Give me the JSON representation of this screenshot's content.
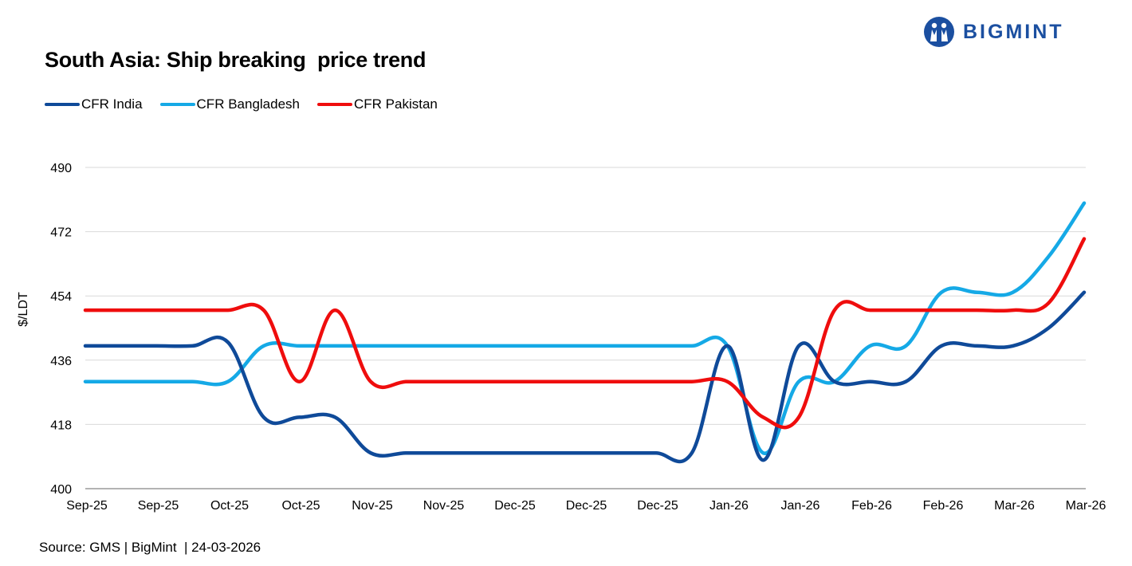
{
  "brand": {
    "name": "BIGMINT"
  },
  "chart_data": {
    "type": "line",
    "title": "South Asia: Ship breaking  price trend",
    "ylabel": "$/LDT",
    "xlabel": "",
    "ylim": [
      400,
      490
    ],
    "yticks": [
      400,
      418,
      436,
      454,
      472,
      490
    ],
    "grid": true,
    "legend_position": "top-left",
    "categories": [
      "Sep-25",
      "Sep-25",
      "Sep-25",
      "Oct-25",
      "Oct-25",
      "Oct-25",
      "Nov-25",
      "Nov-25",
      "Nov-25",
      "Dec-25",
      "Dec-25",
      "Dec-25",
      "Dec-25",
      "Dec-25",
      "Jan-26",
      "Jan-26",
      "Jan-26",
      "Jan-26",
      "Feb-26",
      "Feb-26",
      "Feb-26",
      "Feb-26",
      "Mar-26",
      "Mar-26",
      "Mar-26",
      "Mar-26",
      "Mar-26",
      "Mar-26",
      "Mar-26"
    ],
    "tick_labels": [
      "Sep-25",
      "Sep-25",
      "Oct-25",
      "Oct-25",
      "Nov-25",
      "Nov-25",
      "Dec-25",
      "Dec-25",
      "Dec-25",
      "Jan-26",
      "Jan-26",
      "Feb-26",
      "Feb-26",
      "Mar-26",
      "Mar-26"
    ],
    "series": [
      {
        "name": "CFR India",
        "color": "#0f4a99",
        "values": [
          440,
          440,
          440,
          440,
          441,
          420,
          420,
          420,
          410,
          410,
          410,
          410,
          410,
          410,
          410,
          410,
          410,
          410,
          440,
          408,
          440,
          430,
          430,
          430,
          440,
          440,
          440,
          445,
          455
        ]
      },
      {
        "name": "CFR Bangladesh",
        "color": "#15a9e6",
        "values": [
          430,
          430,
          430,
          430,
          430,
          440,
          440,
          440,
          440,
          440,
          440,
          440,
          440,
          440,
          440,
          440,
          440,
          440,
          440,
          410,
          430,
          430,
          440,
          440,
          455,
          455,
          455,
          465,
          480
        ]
      },
      {
        "name": "CFR Pakistan",
        "color": "#ef0d0d",
        "values": [
          450,
          450,
          450,
          450,
          450,
          450,
          430,
          450,
          430,
          430,
          430,
          430,
          430,
          430,
          430,
          430,
          430,
          430,
          430,
          420,
          420,
          450,
          450,
          450,
          450,
          450,
          450,
          452,
          470
        ]
      }
    ]
  },
  "footer": {
    "source": "Source: GMS | BigMint  | 24-03-2026"
  }
}
